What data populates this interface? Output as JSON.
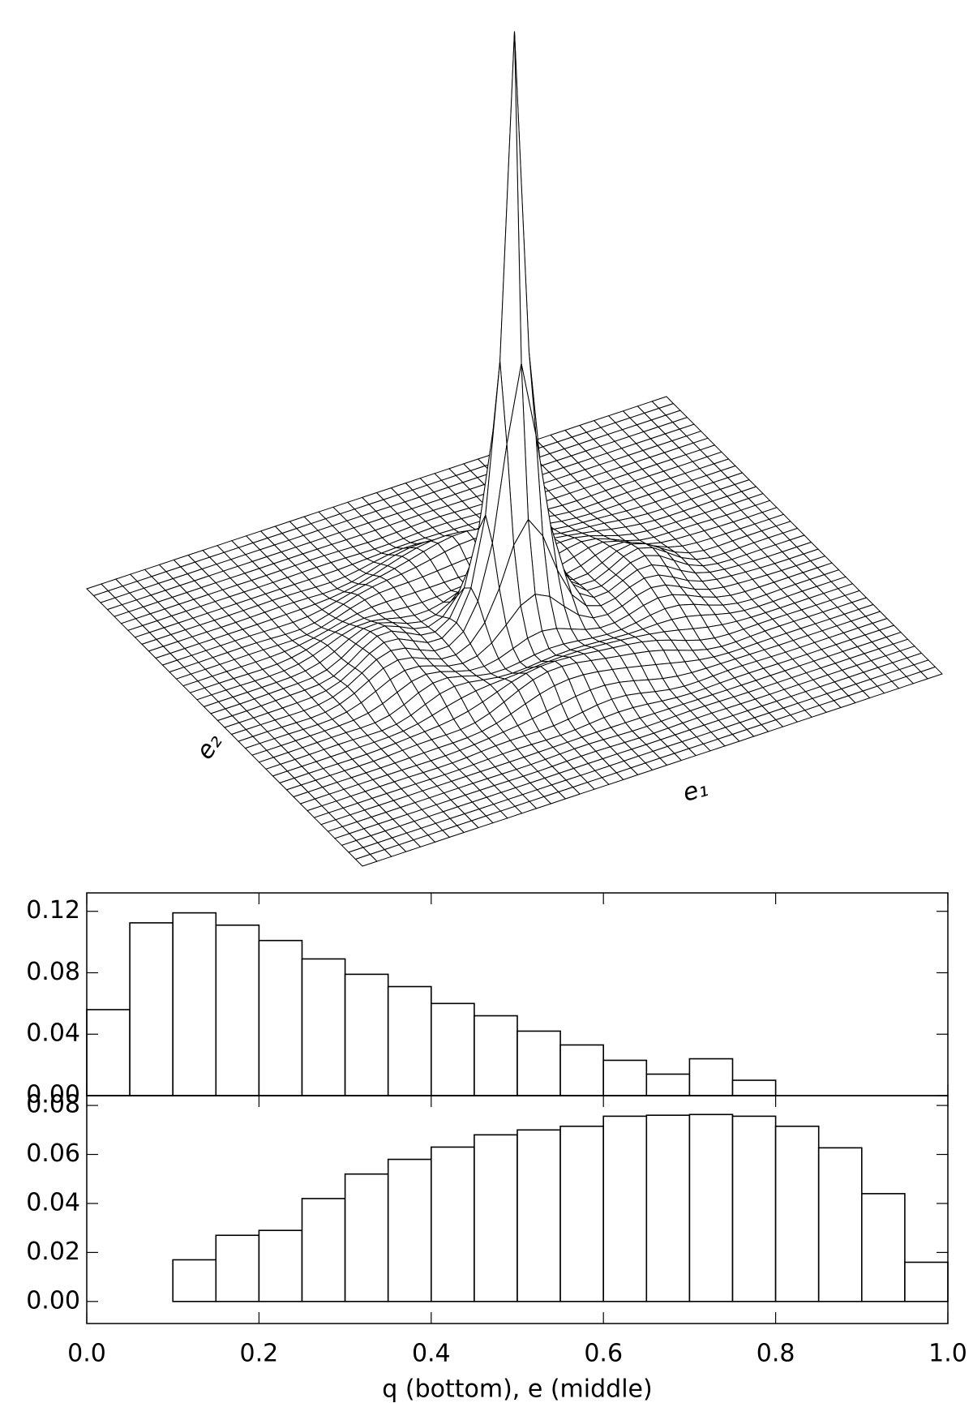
{
  "chart_data": [
    {
      "type": "surface",
      "x_label": "e₁",
      "y_label": "e₂"
    },
    {
      "type": "histogram",
      "bins": [
        0.0,
        0.05,
        0.1,
        0.15,
        0.2,
        0.25,
        0.3,
        0.35,
        0.4,
        0.45,
        0.5,
        0.55,
        0.6,
        0.65,
        0.7,
        0.75,
        0.8,
        0.85,
        0.9,
        0.95,
        1.0
      ],
      "values": [
        0.056,
        0.1125,
        0.119,
        0.111,
        0.101,
        0.089,
        0.079,
        0.071,
        0.06,
        0.052,
        0.042,
        0.033,
        0.023,
        0.014,
        0.024,
        0.01,
        0,
        0,
        0,
        0
      ],
      "xlim": [
        0,
        1
      ],
      "ylim": [
        0,
        0.132
      ],
      "yticks": [
        {
          "value": 0,
          "label": "0.00"
        },
        0.04,
        0.08,
        0.12
      ]
    },
    {
      "type": "histogram",
      "bins": [
        0.0,
        0.05,
        0.1,
        0.15,
        0.2,
        0.25,
        0.3,
        0.35,
        0.4,
        0.45,
        0.5,
        0.55,
        0.6,
        0.65,
        0.7,
        0.75,
        0.8,
        0.85,
        0.9,
        0.95,
        1.0
      ],
      "values": [
        0,
        0,
        0.017,
        0.027,
        0.029,
        0.042,
        0.052,
        0.058,
        0.063,
        0.068,
        0.07,
        0.0715,
        0.0756,
        0.076,
        0.0763,
        0.0756,
        0.0715,
        0.0627,
        0.044,
        0.016
      ],
      "xlim": [
        0,
        1
      ],
      "ylim": [
        -0.009,
        0.084
      ],
      "yticks": [
        {
          "value": 0,
          "label": "0.00"
        },
        0.02,
        0.04,
        0.06,
        0.08
      ],
      "xticks": [
        {
          "value": 0,
          "label": "0.0"
        },
        0.2,
        0.4,
        0.6,
        0.8,
        {
          "value": 1,
          "label": "1.0"
        }
      ],
      "x_label": "q (bottom), e (middle)"
    }
  ]
}
